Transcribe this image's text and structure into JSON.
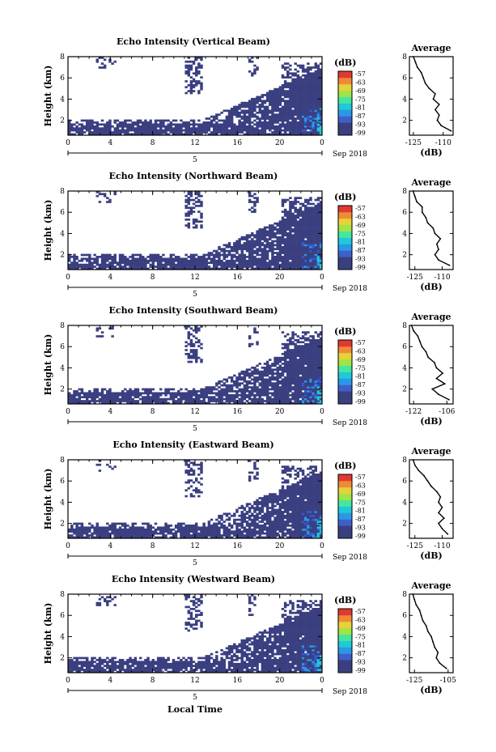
{
  "figure": {
    "xaxis_label": "Local Time",
    "date_label": "Sep 2018",
    "day_label": "5",
    "ylabel": "Height (km)",
    "colorbar_unit": "(dB)",
    "colorbar_ticks": [
      "-57",
      "-63",
      "-69",
      "-75",
      "-81",
      "-87",
      "-93",
      "-99"
    ],
    "colorbar_colors": [
      "#3a3f80",
      "#3a3f80",
      "#3f60c8",
      "#2a98e6",
      "#20c8d8",
      "#46e6a0",
      "#a0e446",
      "#e6d23a",
      "#f08a36",
      "#e03a30"
    ],
    "echo_color": "#3a3f80"
  },
  "chart_data": [
    {
      "type": "heatmap",
      "title": "Echo Intensity (Vertical Beam)",
      "xlabel": "",
      "ylabel": "Height (km)",
      "xlim": [
        0,
        24
      ],
      "ylim": [
        0.6,
        8
      ],
      "x_ticks": [
        "0",
        "4",
        "8",
        "12",
        "16",
        "20",
        "0"
      ],
      "y_ticks": [
        "2",
        "4",
        "6",
        "8"
      ],
      "colorbar": {
        "unit": "(dB)",
        "ticks": [
          -57,
          -63,
          -69,
          -75,
          -81,
          -87,
          -93,
          -99
        ]
      },
      "profile": {
        "title": "Average",
        "xlabel": "(dB)",
        "x_ticks": [
          "-125",
          "-110"
        ],
        "xlim": [
          -127,
          -105
        ],
        "heights": [
          1.0,
          1.5,
          2.0,
          2.5,
          3.0,
          3.5,
          4.0,
          4.5,
          5.0,
          5.5,
          6.0,
          6.5,
          7.0,
          7.5,
          8.0
        ],
        "values": [
          -106,
          -111,
          -113,
          -112,
          -114,
          -112,
          -115,
          -114,
          -117,
          -119,
          -120,
          -121,
          -123,
          -124,
          -125
        ]
      }
    },
    {
      "type": "heatmap",
      "title": "Echo Intensity (Northward Beam)",
      "xlabel": "",
      "ylabel": "Height (km)",
      "xlim": [
        0,
        24
      ],
      "ylim": [
        0.6,
        8
      ],
      "x_ticks": [
        "0",
        "4",
        "8",
        "12",
        "16",
        "20",
        "0"
      ],
      "y_ticks": [
        "2",
        "4",
        "6",
        "8"
      ],
      "colorbar": {
        "unit": "(dB)",
        "ticks": [
          -57,
          -63,
          -69,
          -75,
          -81,
          -87,
          -93,
          -99
        ]
      },
      "profile": {
        "title": "Average",
        "xlabel": "(dB)",
        "x_ticks": [
          "-125",
          "-110"
        ],
        "xlim": [
          -128,
          -104
        ],
        "heights": [
          1.0,
          1.5,
          2.0,
          2.5,
          3.0,
          3.5,
          4.0,
          4.5,
          5.0,
          5.5,
          6.0,
          6.5,
          7.0,
          7.5,
          8.0
        ],
        "values": [
          -106,
          -112,
          -114,
          -112,
          -113,
          -111,
          -114,
          -115,
          -118,
          -119,
          -121,
          -121,
          -124,
          -125,
          -126
        ]
      }
    },
    {
      "type": "heatmap",
      "title": "Echo Intensity (Southward Beam)",
      "xlabel": "",
      "ylabel": "Height (km)",
      "xlim": [
        0,
        24
      ],
      "ylim": [
        0.6,
        8
      ],
      "x_ticks": [
        "0",
        "4",
        "8",
        "12",
        "16",
        "20",
        "0"
      ],
      "y_ticks": [
        "2",
        "4",
        "6",
        "8"
      ],
      "colorbar": {
        "unit": "(dB)",
        "ticks": [
          -57,
          -63,
          -69,
          -75,
          -81,
          -87,
          -93,
          -99
        ]
      },
      "profile": {
        "title": "Average",
        "xlabel": "(dB)",
        "x_ticks": [
          "-122",
          "-106"
        ],
        "xlim": [
          -124,
          -103
        ],
        "heights": [
          1.0,
          1.5,
          2.0,
          2.5,
          3.0,
          3.5,
          4.0,
          4.5,
          5.0,
          5.5,
          6.0,
          6.5,
          7.0,
          7.5,
          8.0
        ],
        "values": [
          -105,
          -110,
          -113,
          -107,
          -111,
          -108,
          -111,
          -112,
          -115,
          -116,
          -118,
          -119,
          -120,
          -122,
          -123
        ]
      }
    },
    {
      "type": "heatmap",
      "title": "Echo Intensity (Eastward Beam)",
      "xlabel": "",
      "ylabel": "Height (km)",
      "xlim": [
        0,
        24
      ],
      "ylim": [
        0.6,
        8
      ],
      "x_ticks": [
        "0",
        "4",
        "8",
        "12",
        "16",
        "20",
        "0"
      ],
      "y_ticks": [
        "2",
        "4",
        "6",
        "8"
      ],
      "colorbar": {
        "unit": "(dB)",
        "ticks": [
          -57,
          -63,
          -69,
          -75,
          -81,
          -87,
          -93,
          -99
        ]
      },
      "profile": {
        "title": "Average",
        "xlabel": "(dB)",
        "x_ticks": [
          "-125",
          "-110"
        ],
        "xlim": [
          -128,
          -104
        ],
        "heights": [
          1.0,
          1.5,
          2.0,
          2.5,
          3.0,
          3.5,
          4.0,
          4.5,
          5.0,
          5.5,
          6.0,
          6.5,
          7.0,
          7.5,
          8.0
        ],
        "values": [
          -107,
          -110,
          -112,
          -109,
          -112,
          -110,
          -112,
          -111,
          -113,
          -116,
          -118,
          -120,
          -123,
          -125,
          -126
        ]
      }
    },
    {
      "type": "heatmap",
      "title": "Echo Intensity (Westward Beam)",
      "xlabel": "Local Time",
      "ylabel": "Height (km)",
      "xlim": [
        0,
        24
      ],
      "ylim": [
        0.6,
        8
      ],
      "x_ticks": [
        "0",
        "4",
        "8",
        "12",
        "16",
        "20",
        "0"
      ],
      "y_ticks": [
        "2",
        "4",
        "6",
        "8"
      ],
      "colorbar": {
        "unit": "(dB)",
        "ticks": [
          -57,
          -63,
          -69,
          -75,
          -81,
          -87,
          -93,
          -99
        ]
      },
      "profile": {
        "title": "Average",
        "xlabel": "(dB)",
        "x_ticks": [
          "-125",
          "-105"
        ],
        "xlim": [
          -128,
          -102
        ],
        "heights": [
          1.0,
          1.5,
          2.0,
          2.5,
          3.0,
          3.5,
          4.0,
          4.5,
          5.0,
          5.5,
          6.0,
          6.5,
          7.0,
          7.5,
          8.0
        ],
        "values": [
          -106,
          -110,
          -112,
          -111,
          -113,
          -114,
          -115,
          -117,
          -118,
          -120,
          -121,
          -122,
          -124,
          -125,
          -126
        ]
      }
    }
  ]
}
